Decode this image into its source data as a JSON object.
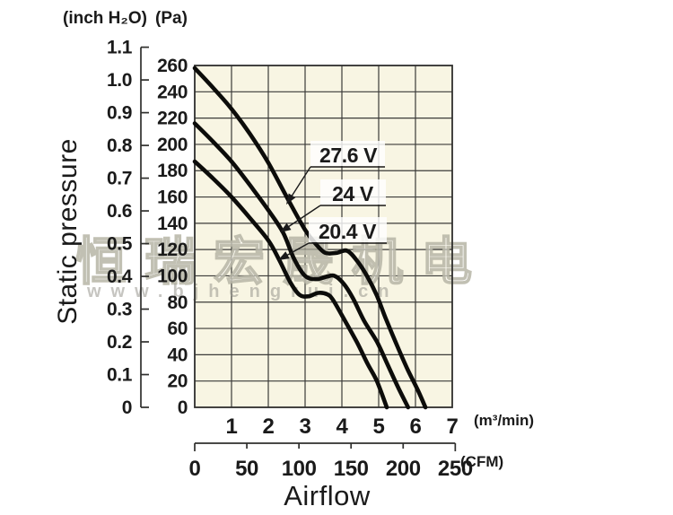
{
  "units": {
    "pressure_left": "(inch H₂O)",
    "pressure_right": "(Pa)",
    "flow_top": "(m³/min)",
    "flow_bottom": "(CFM)"
  },
  "axis_titles": {
    "y": "Static pressure",
    "x": "Airflow"
  },
  "ticks": {
    "inch_h2o": [
      "1.1",
      "1.0",
      "0.9",
      "0.8",
      "0.7",
      "0.6",
      "0.5",
      "0.4",
      "0.3",
      "0.2",
      "0.1",
      "0"
    ],
    "inch_h2o_values": [
      1.1,
      1.0,
      0.9,
      0.8,
      0.7,
      0.6,
      0.5,
      0.4,
      0.3,
      0.2,
      0.1,
      0
    ],
    "pa": [
      260,
      240,
      220,
      200,
      180,
      160,
      140,
      120,
      100,
      80,
      60,
      40,
      20,
      0
    ],
    "m3min": [
      1,
      2,
      3,
      4,
      5,
      6,
      7
    ],
    "cfm": [
      0,
      50,
      100,
      150,
      200,
      250
    ]
  },
  "watermark": {
    "brand": "恒瑞宏晟机电",
    "url": "www.bjhengrui.cn"
  },
  "colors": {
    "page_bg": "#ffffff",
    "plot_bg": "#f8f5e3",
    "grid": "#3b3b39",
    "frame": "#2f2f2d",
    "curve": "#0c0c0a",
    "text": "#1a1a1a",
    "callout_bg": "rgba(255,255,255,0.82)"
  },
  "chart_data": {
    "type": "line",
    "title": "",
    "xlabel": "Airflow",
    "ylabel": "Static pressure",
    "x_unit_primary": "m³/min",
    "x_unit_secondary": "CFM",
    "y_unit_primary": "Pa",
    "y_unit_secondary": "inch H₂O",
    "x_range_m3min": [
      0,
      7
    ],
    "x_range_cfm": [
      0,
      250
    ],
    "y_range_pa": [
      0,
      260
    ],
    "y_range_inch_h2o": [
      0,
      1.1
    ],
    "grid": true,
    "legend_position": "inline-callouts",
    "series": [
      {
        "name": "27.6 V",
        "points_m3min_pa": [
          [
            0,
            258
          ],
          [
            0.5,
            243
          ],
          [
            1,
            227
          ],
          [
            1.5,
            208
          ],
          [
            2,
            186
          ],
          [
            2.5,
            160
          ],
          [
            3,
            135
          ],
          [
            3.3,
            124
          ],
          [
            3.55,
            117.5
          ],
          [
            3.85,
            117.5
          ],
          [
            4.15,
            119
          ],
          [
            4.45,
            110
          ],
          [
            4.7,
            99
          ],
          [
            4.95,
            85
          ],
          [
            5.2,
            67
          ],
          [
            5.5,
            47
          ],
          [
            5.8,
            28
          ],
          [
            6.05,
            14
          ],
          [
            6.27,
            0
          ]
        ]
      },
      {
        "name": "24 V",
        "points_m3min_pa": [
          [
            0,
            216
          ],
          [
            0.5,
            202
          ],
          [
            1,
            187
          ],
          [
            1.5,
            169
          ],
          [
            2,
            150
          ],
          [
            2.4,
            133
          ],
          [
            2.7,
            113
          ],
          [
            3.0,
            100
          ],
          [
            3.3,
            97.5
          ],
          [
            3.6,
            99.5
          ],
          [
            3.8,
            100
          ],
          [
            4.05,
            94
          ],
          [
            4.3,
            83
          ],
          [
            4.6,
            66
          ],
          [
            4.95,
            50
          ],
          [
            5.25,
            32
          ],
          [
            5.55,
            14
          ],
          [
            5.8,
            0
          ]
        ]
      },
      {
        "name": "20.4 V",
        "points_m3min_pa": [
          [
            0,
            187
          ],
          [
            0.5,
            174
          ],
          [
            1,
            160
          ],
          [
            1.5,
            144
          ],
          [
            2,
            127
          ],
          [
            2.3,
            112
          ],
          [
            2.6,
            95
          ],
          [
            2.85,
            85.5
          ],
          [
            3.1,
            84.5
          ],
          [
            3.35,
            87
          ],
          [
            3.6,
            86
          ],
          [
            3.75,
            82
          ],
          [
            4.0,
            70
          ],
          [
            4.4,
            50
          ],
          [
            4.7,
            33
          ],
          [
            4.95,
            20
          ],
          [
            5.22,
            0
          ]
        ]
      }
    ]
  }
}
